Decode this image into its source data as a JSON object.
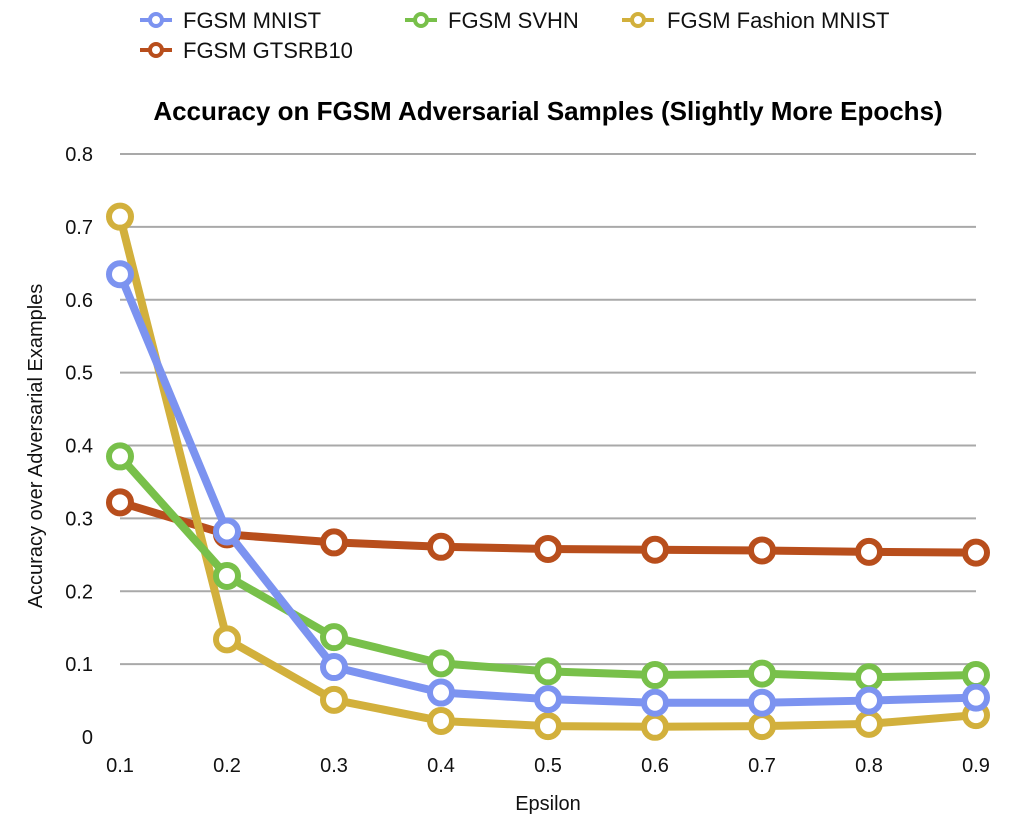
{
  "chart_data": {
    "type": "line",
    "title": "Accuracy on FGSM Adversarial Samples (Slightly More Epochs)",
    "xlabel": "Epsilon",
    "ylabel": "Accuracy over Adversarial Examples",
    "x": [
      0.1,
      0.2,
      0.3,
      0.4,
      0.5,
      0.6,
      0.7,
      0.8,
      0.9
    ],
    "x_tick_labels": [
      "0.1",
      "0.2",
      "0.3",
      "0.4",
      "0.5",
      "0.6",
      "0.7",
      "0.8",
      "0.9"
    ],
    "ylim": [
      0,
      0.8
    ],
    "y_ticks": [
      0,
      0.1,
      0.2,
      0.3,
      0.4,
      0.5,
      0.6,
      0.7,
      0.8
    ],
    "y_tick_labels": [
      "0",
      "0.1",
      "0.2",
      "0.3",
      "0.4",
      "0.5",
      "0.6",
      "0.7",
      "0.8"
    ],
    "grid": true,
    "legend_position": "top",
    "series": [
      {
        "name": "FGSM MNIST",
        "color": "#7c93f0",
        "values": [
          0.635,
          0.282,
          0.096,
          0.061,
          0.052,
          0.047,
          0.047,
          0.05,
          0.054
        ]
      },
      {
        "name": "FGSM SVHN",
        "color": "#78c04a",
        "values": [
          0.385,
          0.221,
          0.137,
          0.101,
          0.09,
          0.085,
          0.087,
          0.082,
          0.085
        ]
      },
      {
        "name": "FGSM Fashion MNIST",
        "color": "#d2b03c",
        "values": [
          0.714,
          0.134,
          0.051,
          0.022,
          0.015,
          0.014,
          0.015,
          0.018,
          0.03
        ]
      },
      {
        "name": "FGSM GTSRB10",
        "color": "#b84e1c",
        "values": [
          0.322,
          0.278,
          0.267,
          0.261,
          0.258,
          0.257,
          0.256,
          0.254,
          0.253
        ]
      }
    ],
    "draw_order": [
      3,
      2,
      1,
      0
    ]
  }
}
